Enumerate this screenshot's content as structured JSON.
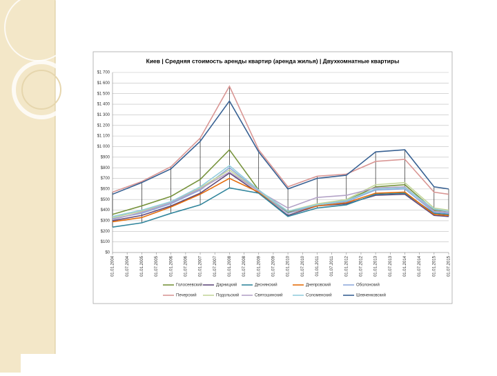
{
  "chart_data": {
    "type": "line",
    "title": "Киев | Средняя стоимость аренды квартир (аренда жилья) | Двухкомнатные квартиры",
    "x": [
      2004,
      2005,
      2006,
      2007,
      2008,
      2009,
      2010,
      2011,
      2012,
      2013,
      2014,
      2015,
      2015.5
    ],
    "xlim": [
      2004,
      2015.5
    ],
    "xticks": [
      {
        "value": 2004,
        "label": "01.01.2004"
      },
      {
        "value": 2004.5,
        "label": "01.07.2004"
      },
      {
        "value": 2005,
        "label": "01.01.2005"
      },
      {
        "value": 2005.5,
        "label": "01.07.2005"
      },
      {
        "value": 2006,
        "label": "01.01.2006"
      },
      {
        "value": 2006.5,
        "label": "01.07.2006"
      },
      {
        "value": 2007,
        "label": "01.01.2007"
      },
      {
        "value": 2007.5,
        "label": "01.07.2007"
      },
      {
        "value": 2008,
        "label": "01.01.2008"
      },
      {
        "value": 2008.5,
        "label": "01.07.2008"
      },
      {
        "value": 2009,
        "label": "01.01.2009"
      },
      {
        "value": 2009.5,
        "label": "01.07.2009"
      },
      {
        "value": 2010,
        "label": "01.01.2010"
      },
      {
        "value": 2010.5,
        "label": "01.07.2010"
      },
      {
        "value": 2011,
        "label": "01.01.2011"
      },
      {
        "value": 2011.5,
        "label": "01.07.2011"
      },
      {
        "value": 2012,
        "label": "01.01.2012"
      },
      {
        "value": 2012.5,
        "label": "01.07.2012"
      },
      {
        "value": 2013,
        "label": "01.01.2013"
      },
      {
        "value": 2013.5,
        "label": "01.07.2013"
      },
      {
        "value": 2014,
        "label": "01.01.2014"
      },
      {
        "value": 2014.5,
        "label": "01.07.2014"
      },
      {
        "value": 2015,
        "label": "01.01.2015"
      },
      {
        "value": 2015.5,
        "label": "01.07.2015"
      }
    ],
    "ylim": [
      0,
      1700
    ],
    "yticks": [
      {
        "value": 0,
        "label": "$0"
      },
      {
        "value": 100,
        "label": "$100"
      },
      {
        "value": 200,
        "label": "$200"
      },
      {
        "value": 300,
        "label": "$300"
      },
      {
        "value": 400,
        "label": "$400"
      },
      {
        "value": 500,
        "label": "$500"
      },
      {
        "value": 600,
        "label": "$600"
      },
      {
        "value": 700,
        "label": "$700"
      },
      {
        "value": 800,
        "label": "$800"
      },
      {
        "value": 900,
        "label": "$900"
      },
      {
        "value": 1000,
        "label": "$1 000"
      },
      {
        "value": 1100,
        "label": "$1 100"
      },
      {
        "value": 1200,
        "label": "$1 200"
      },
      {
        "value": 1300,
        "label": "$1 300"
      },
      {
        "value": 1400,
        "label": "$1 400"
      },
      {
        "value": 1500,
        "label": "$1 500"
      },
      {
        "value": 1600,
        "label": "$1 600"
      },
      {
        "value": 1700,
        "label": "$1 700"
      }
    ],
    "grid": true,
    "high_low_lines": true,
    "series": [
      {
        "name": "Голосеевский",
        "color": "#77933c",
        "values": [
          360,
          440,
          530,
          690,
          970,
          590,
          380,
          450,
          490,
          620,
          640,
          400,
          390
        ]
      },
      {
        "name": "Дарницкий",
        "color": "#604a7b",
        "values": [
          300,
          350,
          440,
          560,
          750,
          560,
          350,
          440,
          460,
          540,
          550,
          350,
          340
        ]
      },
      {
        "name": "Деснянский",
        "color": "#31859c",
        "values": [
          240,
          280,
          370,
          450,
          610,
          560,
          340,
          420,
          450,
          550,
          560,
          370,
          360
        ]
      },
      {
        "name": "Днепровский",
        "color": "#e46c0a",
        "values": [
          290,
          330,
          430,
          550,
          700,
          570,
          370,
          440,
          470,
          560,
          570,
          360,
          350
        ]
      },
      {
        "name": "Оболонский",
        "color": "#8faadc",
        "values": [
          320,
          370,
          460,
          590,
          800,
          580,
          370,
          450,
          480,
          590,
          600,
          380,
          370
        ]
      },
      {
        "name": "Печерский",
        "color": "#d99694",
        "values": [
          570,
          670,
          810,
          1080,
          1570,
          970,
          620,
          720,
          740,
          860,
          880,
          570,
          550
        ]
      },
      {
        "name": "Подольский",
        "color": "#c3d69b",
        "values": [
          330,
          390,
          480,
          610,
          780,
          580,
          390,
          460,
          500,
          640,
          660,
          420,
          400
        ]
      },
      {
        "name": "Святошинский",
        "color": "#b3a2c7",
        "values": [
          310,
          380,
          470,
          600,
          760,
          580,
          420,
          520,
          540,
          610,
          620,
          390,
          380
        ]
      },
      {
        "name": "Соломенский",
        "color": "#93cddd",
        "values": [
          340,
          400,
          480,
          620,
          820,
          590,
          390,
          450,
          490,
          600,
          610,
          410,
          390
        ]
      },
      {
        "name": "Шевченковский",
        "color": "#376092",
        "values": [
          550,
          660,
          790,
          1050,
          1430,
          950,
          600,
          700,
          730,
          950,
          970,
          620,
          600
        ]
      }
    ]
  }
}
